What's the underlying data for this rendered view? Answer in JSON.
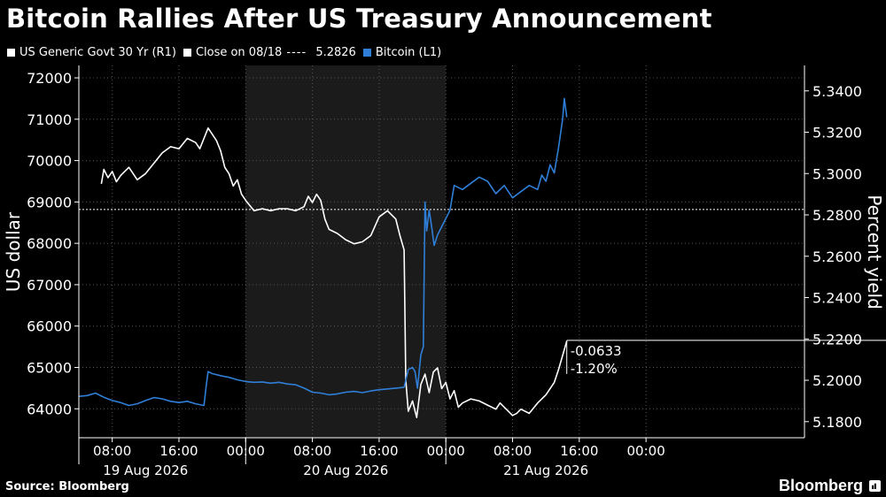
{
  "header": {
    "title": "Bitcoin Rallies After US Treasury Announcement"
  },
  "legend": {
    "items": [
      {
        "label": "US Generic Govt 30 Yr (R1)",
        "color": "#ffffff"
      },
      {
        "label": "Close on 08/18",
        "value": "5.2826",
        "color": "#ffffff"
      },
      {
        "label": "Bitcoin (L1)",
        "color": "#2f7fd8"
      }
    ]
  },
  "footer": {
    "source": "Source: Bloomberg",
    "brand": "Bloomberg"
  },
  "chart_data": {
    "type": "line",
    "left_axis": {
      "label": "US dollar",
      "ticks": [
        64000,
        65000,
        66000,
        67000,
        68000,
        69000,
        70000,
        71000,
        72000
      ],
      "range": [
        63300,
        72300
      ]
    },
    "right_axis": {
      "label": "Percent yield",
      "ticks": [
        "5.1800",
        "5.2000",
        "5.2200",
        "5.2400",
        "5.2600",
        "5.2800",
        "5.3000",
        "5.3200",
        "5.3400"
      ],
      "range": [
        5.1722,
        5.3523
      ]
    },
    "x_axis": {
      "range_hours": [
        0,
        87
      ],
      "time_ticks": [
        {
          "h": 4,
          "label": "08:00"
        },
        {
          "h": 12,
          "label": "16:00"
        },
        {
          "h": 20,
          "label": "00:00"
        },
        {
          "h": 28,
          "label": "08:00"
        },
        {
          "h": 36,
          "label": "16:00"
        },
        {
          "h": 44,
          "label": "00:00"
        },
        {
          "h": 52,
          "label": "08:00"
        },
        {
          "h": 60,
          "label": "16:00"
        },
        {
          "h": 68,
          "label": "00:00"
        }
      ],
      "date_labels": [
        {
          "h": 8,
          "label": "19 Aug 2026"
        },
        {
          "h": 32,
          "label": "20 Aug 2026"
        },
        {
          "h": 56,
          "label": "21 Aug 2026"
        }
      ],
      "shaded_span_hours": [
        20,
        44
      ],
      "day_separators_hours": [
        0,
        20,
        44
      ]
    },
    "reference_line": {
      "axis": "right",
      "value": 5.2826,
      "label": "Close on 08/18"
    },
    "annotation": {
      "change": "-0.0633",
      "pct_change": "-1.20%",
      "level": 5.2193
    },
    "series": [
      {
        "name": "US Generic Govt 30 Yr (R1)",
        "axis": "right",
        "color": "#ffffff",
        "points": [
          [
            2.7,
            5.295
          ],
          [
            3.0,
            5.302
          ],
          [
            3.5,
            5.298
          ],
          [
            4.0,
            5.301
          ],
          [
            4.5,
            5.296
          ],
          [
            5.0,
            5.299
          ],
          [
            6.0,
            5.303
          ],
          [
            7.0,
            5.297
          ],
          [
            8.0,
            5.3
          ],
          [
            9.0,
            5.305
          ],
          [
            10.0,
            5.31
          ],
          [
            11.0,
            5.313
          ],
          [
            12.0,
            5.312
          ],
          [
            13.0,
            5.317
          ],
          [
            14.0,
            5.315
          ],
          [
            14.5,
            5.312
          ],
          [
            15.0,
            5.317
          ],
          [
            15.5,
            5.322
          ],
          [
            16.0,
            5.319
          ],
          [
            16.5,
            5.316
          ],
          [
            17.0,
            5.311
          ],
          [
            17.5,
            5.303
          ],
          [
            18.0,
            5.3
          ],
          [
            18.5,
            5.294
          ],
          [
            19.0,
            5.297
          ],
          [
            19.5,
            5.29
          ],
          [
            20.0,
            5.287
          ],
          [
            21.0,
            5.282
          ],
          [
            22.0,
            5.283
          ],
          [
            23.0,
            5.282
          ],
          [
            24.0,
            5.283
          ],
          [
            25.0,
            5.283
          ],
          [
            26.0,
            5.282
          ],
          [
            27.0,
            5.284
          ],
          [
            27.5,
            5.289
          ],
          [
            28.0,
            5.286
          ],
          [
            28.5,
            5.29
          ],
          [
            29.0,
            5.287
          ],
          [
            29.5,
            5.278
          ],
          [
            30.0,
            5.273
          ],
          [
            31.0,
            5.271
          ],
          [
            32.0,
            5.268
          ],
          [
            33.0,
            5.266
          ],
          [
            34.0,
            5.267
          ],
          [
            35.0,
            5.27
          ],
          [
            36.0,
            5.279
          ],
          [
            37.0,
            5.282
          ],
          [
            38.0,
            5.278
          ],
          [
            38.5,
            5.27
          ],
          [
            39.0,
            5.263
          ],
          [
            39.2,
            5.2
          ],
          [
            39.5,
            5.185
          ],
          [
            40.0,
            5.19
          ],
          [
            40.5,
            5.182
          ],
          [
            41.0,
            5.198
          ],
          [
            41.5,
            5.203
          ],
          [
            42.0,
            5.194
          ],
          [
            42.5,
            5.204
          ],
          [
            43.0,
            5.206
          ],
          [
            43.5,
            5.196
          ],
          [
            44.0,
            5.199
          ],
          [
            44.5,
            5.191
          ],
          [
            45.0,
            5.195
          ],
          [
            45.5,
            5.187
          ],
          [
            46.0,
            5.189
          ],
          [
            47.0,
            5.191
          ],
          [
            48.0,
            5.19
          ],
          [
            49.0,
            5.188
          ],
          [
            50.0,
            5.186
          ],
          [
            50.5,
            5.189
          ],
          [
            51.0,
            5.187
          ],
          [
            51.5,
            5.185
          ],
          [
            52.0,
            5.183
          ],
          [
            52.5,
            5.184
          ],
          [
            53.0,
            5.186
          ],
          [
            54.0,
            5.184
          ],
          [
            55.0,
            5.189
          ],
          [
            56.0,
            5.193
          ],
          [
            57.0,
            5.199
          ],
          [
            57.5,
            5.205
          ],
          [
            58.0,
            5.212
          ],
          [
            58.5,
            5.219
          ]
        ]
      },
      {
        "name": "Bitcoin (L1)",
        "axis": "left",
        "color": "#2f7fd8",
        "points": [
          [
            0,
            64300
          ],
          [
            1.0,
            64320
          ],
          [
            2.0,
            64380
          ],
          [
            3.0,
            64280
          ],
          [
            4.0,
            64200
          ],
          [
            5.0,
            64150
          ],
          [
            6.0,
            64080
          ],
          [
            7.0,
            64120
          ],
          [
            8.0,
            64200
          ],
          [
            9.0,
            64270
          ],
          [
            10.0,
            64240
          ],
          [
            11.0,
            64180
          ],
          [
            12.0,
            64150
          ],
          [
            13.0,
            64180
          ],
          [
            14.0,
            64120
          ],
          [
            15.0,
            64080
          ],
          [
            15.3,
            64600
          ],
          [
            15.5,
            64900
          ],
          [
            16.0,
            64850
          ],
          [
            17.0,
            64800
          ],
          [
            18.0,
            64760
          ],
          [
            19.0,
            64700
          ],
          [
            20.0,
            64660
          ],
          [
            21.0,
            64640
          ],
          [
            22.0,
            64650
          ],
          [
            23.0,
            64620
          ],
          [
            24.0,
            64640
          ],
          [
            25.0,
            64600
          ],
          [
            26.0,
            64580
          ],
          [
            27.0,
            64500
          ],
          [
            28.0,
            64400
          ],
          [
            29.0,
            64380
          ],
          [
            30.0,
            64340
          ],
          [
            31.0,
            64360
          ],
          [
            32.0,
            64400
          ],
          [
            33.0,
            64420
          ],
          [
            34.0,
            64390
          ],
          [
            35.0,
            64430
          ],
          [
            36.0,
            64460
          ],
          [
            37.0,
            64480
          ],
          [
            38.0,
            64500
          ],
          [
            39.0,
            64520
          ],
          [
            39.5,
            64950
          ],
          [
            40.0,
            65000
          ],
          [
            40.3,
            64900
          ],
          [
            40.6,
            64500
          ],
          [
            41.0,
            65300
          ],
          [
            41.3,
            65500
          ],
          [
            41.5,
            69000
          ],
          [
            41.7,
            68300
          ],
          [
            42.0,
            68800
          ],
          [
            42.3,
            68400
          ],
          [
            42.6,
            67950
          ],
          [
            43.0,
            68200
          ],
          [
            43.5,
            68400
          ],
          [
            44.0,
            68600
          ],
          [
            44.5,
            68800
          ],
          [
            45.0,
            69400
          ],
          [
            46.0,
            69300
          ],
          [
            47.0,
            69450
          ],
          [
            48.0,
            69600
          ],
          [
            49.0,
            69500
          ],
          [
            50.0,
            69200
          ],
          [
            51.0,
            69400
          ],
          [
            52.0,
            69100
          ],
          [
            53.0,
            69250
          ],
          [
            54.0,
            69400
          ],
          [
            55.0,
            69300
          ],
          [
            55.5,
            69650
          ],
          [
            56.0,
            69500
          ],
          [
            56.5,
            69900
          ],
          [
            57.0,
            69700
          ],
          [
            57.5,
            70300
          ],
          [
            58.0,
            71000
          ],
          [
            58.2,
            71500
          ],
          [
            58.5,
            71050
          ]
        ]
      }
    ]
  }
}
